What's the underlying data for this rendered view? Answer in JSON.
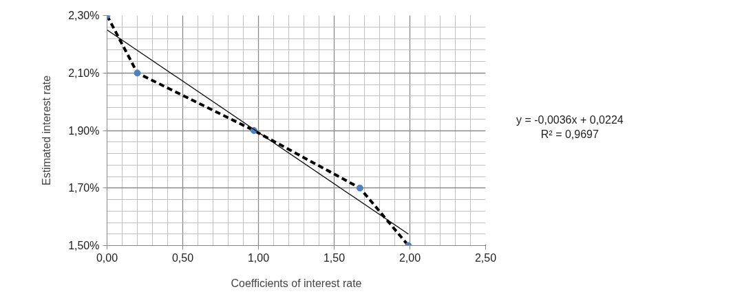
{
  "chart_data": {
    "type": "line",
    "xlabel": "Coefficients of interest rate",
    "ylabel": "Estimated interest rate",
    "series": [
      {
        "x": [
          0.0,
          0.2,
          0.97,
          1.67,
          1.99
        ],
        "values": [
          2.3,
          2.1,
          1.9,
          1.7,
          1.5
        ],
        "color": "#000000",
        "line_style": "dashed"
      },
      {
        "type": "scatter",
        "x": [
          0.0,
          0.2,
          0.97,
          1.67,
          1.99
        ],
        "values": [
          2.3,
          2.1,
          1.9,
          1.7,
          1.5
        ],
        "color": "#4f81bd",
        "marker": "circle"
      },
      {
        "type": "line",
        "x": [
          0.0,
          1.99
        ],
        "values": [
          2.25,
          1.54
        ],
        "color": "#000000",
        "line_style": "solid"
      }
    ],
    "xlim": [
      0,
      2.5
    ],
    "ylim": [
      1.5,
      2.3
    ],
    "xticks": [
      {
        "value": 0,
        "label": "0,00"
      },
      {
        "value": 0.5,
        "label": "0,50"
      },
      {
        "value": 1.0,
        "label": "1,00"
      },
      {
        "value": 1.5,
        "label": "1,50"
      },
      {
        "value": 2.0,
        "label": "2,00"
      },
      {
        "value": 2.5,
        "label": "2,50"
      }
    ],
    "yticks": [
      {
        "value": 1.5,
        "label": "1,50%"
      },
      {
        "value": 1.7,
        "label": "1,70%"
      },
      {
        "value": 1.9,
        "label": "1,90%"
      },
      {
        "value": 2.1,
        "label": "2,10%"
      },
      {
        "value": 2.3,
        "label": "2,30%"
      }
    ],
    "grid": true,
    "annotations": [
      "y = -0,0036x + 0,0224\nR² = 0,9697"
    ]
  }
}
